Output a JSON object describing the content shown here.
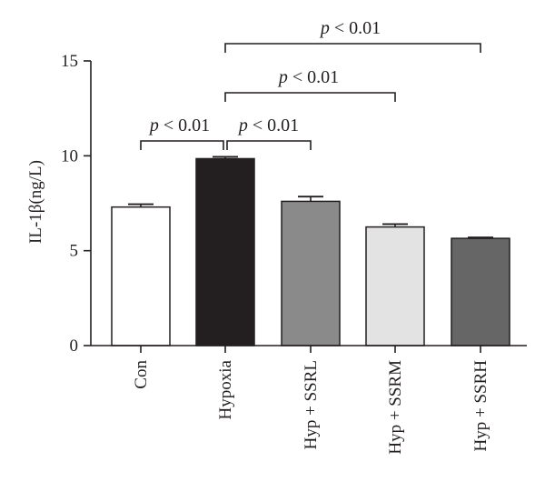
{
  "chart_data": {
    "type": "bar",
    "categories": [
      "Con",
      "Hypoxia",
      "Hyp + SSRL",
      "Hyp + SSRM",
      "Hyp + SSRH"
    ],
    "values": [
      7.3,
      9.85,
      7.6,
      6.25,
      5.65
    ],
    "errors": [
      0.15,
      0.1,
      0.25,
      0.15,
      0.05
    ],
    "colors": [
      "#ffffff",
      "#231f20",
      "#8a8a8a",
      "#e3e3e3",
      "#666666"
    ],
    "ylabel": "IL-1β(ng/L)",
    "ylim": [
      0,
      15
    ],
    "yticks": [
      "0",
      "5",
      "10",
      "15"
    ],
    "grid": false,
    "significance": [
      {
        "from": "Con",
        "to": "Hypoxia",
        "p_symbol": "p",
        "p_rest": " < 0.01"
      },
      {
        "from": "Hypoxia",
        "to": "Hyp + SSRL",
        "p_symbol": "p",
        "p_rest": " < 0.01"
      },
      {
        "from": "Hypoxia",
        "to": "Hyp + SSRM",
        "p_symbol": "p",
        "p_rest": " < 0.01"
      },
      {
        "from": "Hypoxia",
        "to": "Hyp + SSRH",
        "p_symbol": "p",
        "p_rest": " < 0.01"
      }
    ]
  }
}
